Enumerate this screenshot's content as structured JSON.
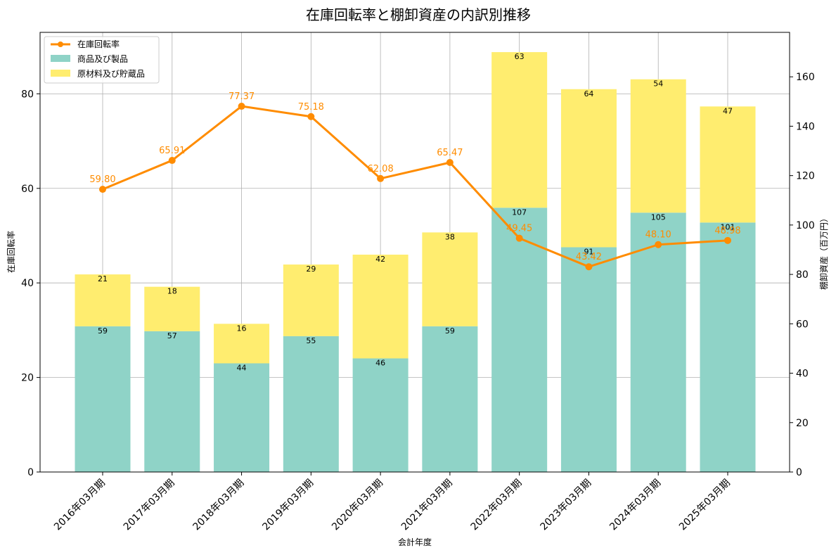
{
  "chart_data": {
    "type": "bar",
    "title": "在庫回転率と棚卸資産の内訳別推移",
    "xlabel": "会計年度",
    "ylabel_left": "在庫回転率",
    "ylabel_right": "棚卸資産（百万円）",
    "ylim_left": [
      0,
      93
    ],
    "ylim_right": [
      0,
      178
    ],
    "yticks_left": [
      "0",
      "20",
      "40",
      "60",
      "80"
    ],
    "yticks_right": [
      "0",
      "20",
      "40",
      "60",
      "80",
      "100",
      "120",
      "140",
      "160"
    ],
    "grid": true,
    "legend_position": "top-left",
    "categories": [
      "2016年03月期",
      "2017年03月期",
      "2018年03月期",
      "2019年03月期",
      "2020年03月期",
      "2021年03月期",
      "2022年03月期",
      "2023年03月期",
      "2024年03月期",
      "2025年03月期"
    ],
    "series": [
      {
        "name": "商品及び製品",
        "kind": "bar",
        "axis": "right",
        "color": "#8fd3c7",
        "values": [
          59,
          57,
          44,
          55,
          46,
          59,
          107,
          91,
          105,
          101
        ],
        "labels": [
          "59",
          "57",
          "44",
          "55",
          "46",
          "59",
          "107",
          "91",
          "105",
          "101"
        ]
      },
      {
        "name": "原材料及び貯蔵品",
        "kind": "bar",
        "axis": "right",
        "color": "#ffed6f",
        "values": [
          21,
          18,
          16,
          29,
          42,
          38,
          63,
          64,
          54,
          47
        ],
        "labels": [
          "21",
          "18",
          "16",
          "29",
          "42",
          "38",
          "63",
          "64",
          "54",
          "47"
        ]
      },
      {
        "name": "在庫回転率",
        "kind": "line",
        "axis": "left",
        "color": "#ff8c00",
        "values": [
          59.8,
          65.91,
          77.37,
          75.18,
          62.08,
          65.47,
          49.45,
          43.42,
          48.1,
          48.98
        ],
        "labels": [
          "59.80",
          "65.91",
          "77.37",
          "75.18",
          "62.08",
          "65.47",
          "49.45",
          "43.42",
          "48.10",
          "48.98"
        ]
      }
    ]
  }
}
